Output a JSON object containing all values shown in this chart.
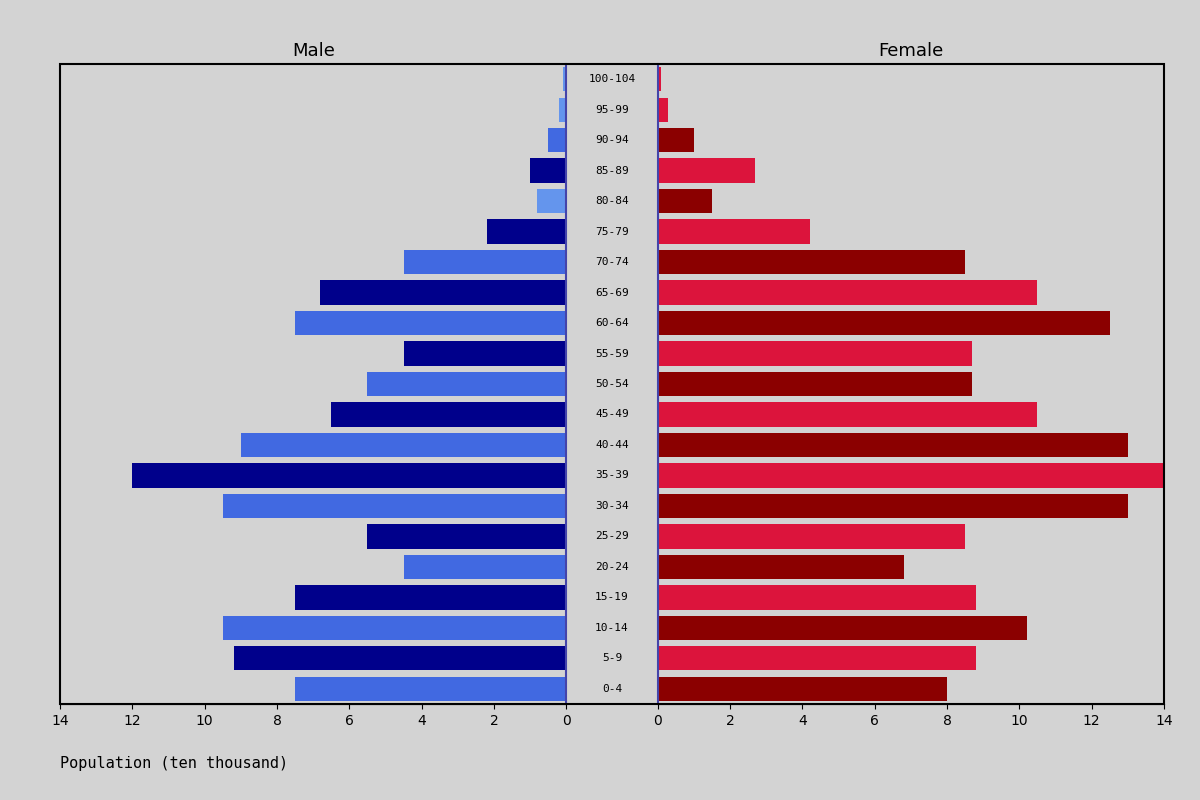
{
  "age_groups": [
    "0-4",
    "5-9",
    "10-14",
    "15-19",
    "20-24",
    "25-29",
    "30-34",
    "35-39",
    "40-44",
    "45-49",
    "50-54",
    "55-59",
    "60-64",
    "65-69",
    "70-74",
    "75-79",
    "80-84",
    "85-89",
    "90-94",
    "95-99",
    "100-104"
  ],
  "male_values": [
    7.5,
    9.2,
    9.5,
    7.5,
    4.5,
    5.5,
    9.5,
    12.0,
    9.0,
    6.5,
    5.5,
    4.5,
    7.5,
    6.8,
    4.5,
    2.2,
    0.8,
    1.0,
    0.5,
    0.2,
    0.1
  ],
  "female_values": [
    8.0,
    8.8,
    10.2,
    8.8,
    6.8,
    8.5,
    13.0,
    14.2,
    13.0,
    10.5,
    8.7,
    8.7,
    12.5,
    10.5,
    8.5,
    4.2,
    1.5,
    2.7,
    1.0,
    0.3,
    0.1
  ],
  "male_colors": [
    "#4169E1",
    "#00008B",
    "#4169E1",
    "#00008B",
    "#4169E1",
    "#00008B",
    "#4169E1",
    "#00008B",
    "#4169E1",
    "#00008B",
    "#4169E1",
    "#00008B",
    "#4169E1",
    "#00008B",
    "#4169E1",
    "#00008B",
    "#6495ED",
    "#00008B",
    "#4169E1",
    "#6495ED",
    "#6495ED"
  ],
  "female_colors": [
    "#8B0000",
    "#DC143C",
    "#8B0000",
    "#DC143C",
    "#8B0000",
    "#DC143C",
    "#8B0000",
    "#DC143C",
    "#8B0000",
    "#DC143C",
    "#8B0000",
    "#DC143C",
    "#8B0000",
    "#DC143C",
    "#8B0000",
    "#DC143C",
    "#8B0000",
    "#DC143C",
    "#8B0000",
    "#DC143C",
    "#DC143C"
  ],
  "xlim": 14,
  "title_male": "Male",
  "title_female": "Female",
  "xlabel": "Population (ten thousand)",
  "background_color": "#d3d3d3",
  "plot_bg_color": "#d3d3d3",
  "bar_height": 0.8,
  "label_fontsize": 8,
  "title_fontsize": 13,
  "tick_fontsize": 10,
  "border_color": "#000000"
}
